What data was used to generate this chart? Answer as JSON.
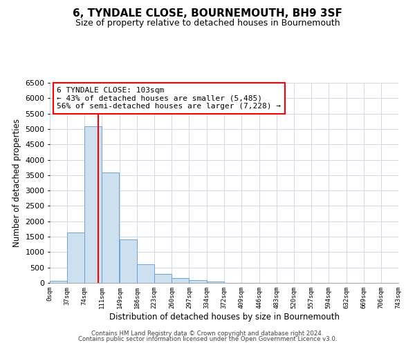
{
  "title": "6, TYNDALE CLOSE, BOURNEMOUTH, BH9 3SF",
  "subtitle": "Size of property relative to detached houses in Bournemouth",
  "xlabel": "Distribution of detached houses by size in Bournemouth",
  "ylabel": "Number of detached properties",
  "bar_left_edges": [
    0,
    37,
    74,
    111,
    149,
    186,
    223,
    260,
    297,
    334,
    372,
    409,
    446,
    483,
    520,
    557,
    594,
    632,
    669,
    706
  ],
  "bar_heights": [
    60,
    1630,
    5080,
    3580,
    1420,
    610,
    300,
    150,
    100,
    40,
    0,
    0,
    0,
    0,
    0,
    0,
    0,
    0,
    0,
    0
  ],
  "bin_width": 37,
  "bar_color": "#cce0f0",
  "bar_edge_color": "#5b9bd5",
  "vline_x": 103,
  "vline_color": "red",
  "ylim": [
    0,
    6500
  ],
  "yticks": [
    0,
    500,
    1000,
    1500,
    2000,
    2500,
    3000,
    3500,
    4000,
    4500,
    5000,
    5500,
    6000,
    6500
  ],
  "xtick_labels": [
    "0sqm",
    "37sqm",
    "74sqm",
    "111sqm",
    "149sqm",
    "186sqm",
    "223sqm",
    "260sqm",
    "297sqm",
    "334sqm",
    "372sqm",
    "409sqm",
    "446sqm",
    "483sqm",
    "520sqm",
    "557sqm",
    "594sqm",
    "632sqm",
    "669sqm",
    "706sqm",
    "743sqm"
  ],
  "annotation_text": "6 TYNDALE CLOSE: 103sqm\n← 43% of detached houses are smaller (5,485)\n56% of semi-detached houses are larger (7,228) →",
  "annotation_box_color": "red",
  "footer_line1": "Contains HM Land Registry data © Crown copyright and database right 2024.",
  "footer_line2": "Contains public sector information licensed under the Open Government Licence v3.0.",
  "bg_color": "#ffffff",
  "grid_color": "#d0d8e8"
}
